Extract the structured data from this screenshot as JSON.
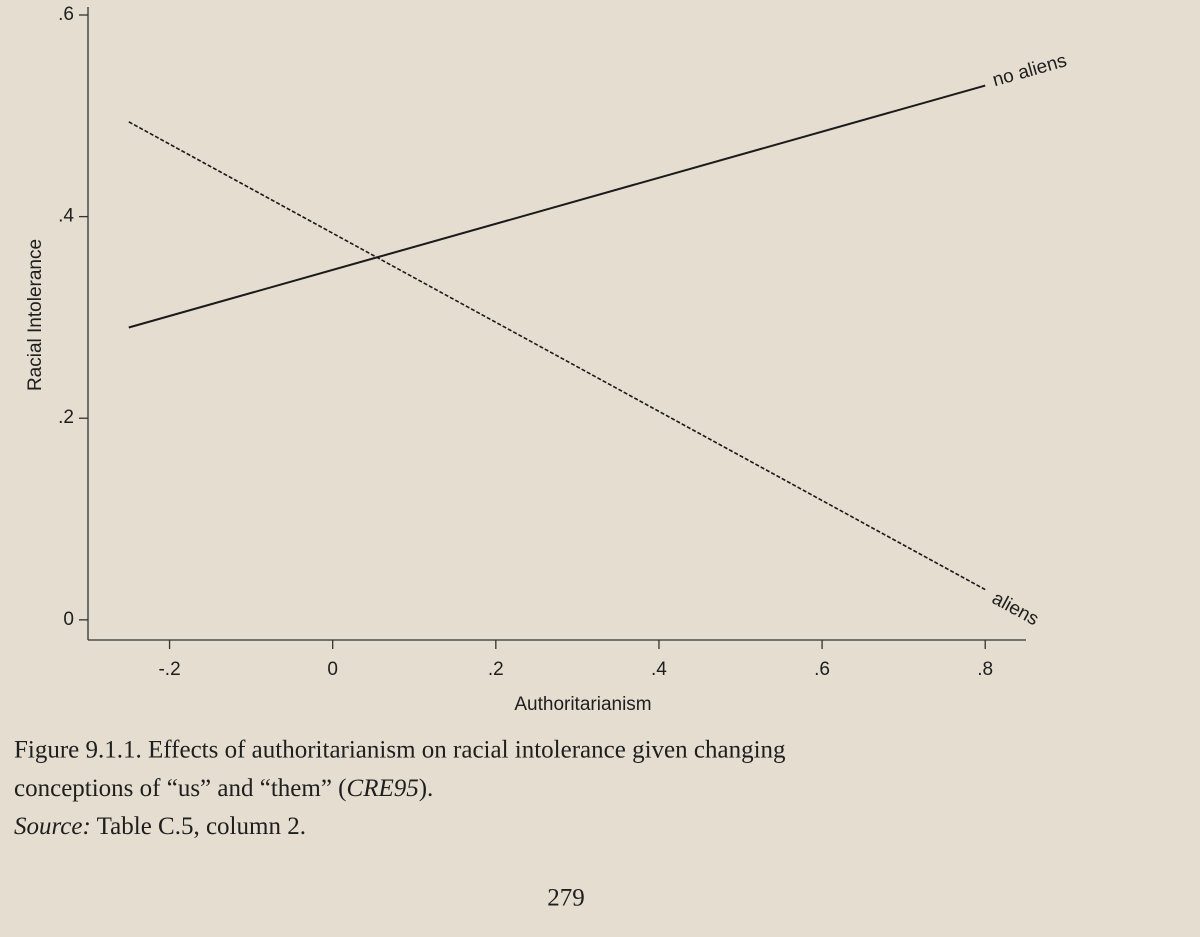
{
  "chart_data": {
    "type": "line",
    "x_label": "Authoritarianism",
    "y_label": "Racial Intolerance",
    "x": [
      -0.25,
      0.8
    ],
    "series": [
      {
        "name": "no aliens",
        "color": "#1a1a1a",
        "style": "solid",
        "values": [
          0.29,
          0.53
        ]
      },
      {
        "name": "aliens",
        "color": "#1a1a1a",
        "style": "dashed",
        "values": [
          0.494,
          0.03
        ]
      }
    ],
    "xlim": [
      -0.3,
      0.85
    ],
    "xticks": [
      {
        "value": -0.2,
        "label": "-.2"
      },
      0,
      {
        "value": 0.2,
        "label": ".2"
      },
      {
        "value": 0.4,
        "label": ".4"
      },
      {
        "value": 0.6,
        "label": ".6"
      },
      {
        "value": 0.8,
        "label": ".8"
      }
    ],
    "ylim": [
      -0.02,
      0.6
    ],
    "yticks": [
      0,
      {
        "value": 0.2,
        "label": ".2"
      },
      {
        "value": 0.4,
        "label": ".4"
      },
      {
        "value": 0.6,
        "label": ".6"
      }
    ],
    "grid": false
  },
  "caption": {
    "figure": "Figure 9.1.1. Effects of authoritarianism on racial intolerance given changing",
    "line2_start": "conceptions of “us” and “them” (",
    "line2_italic": "CRE95",
    "line2_end": ").",
    "source_label": "Source:",
    "source": " Table C.5, column 2."
  },
  "page_number": "279"
}
